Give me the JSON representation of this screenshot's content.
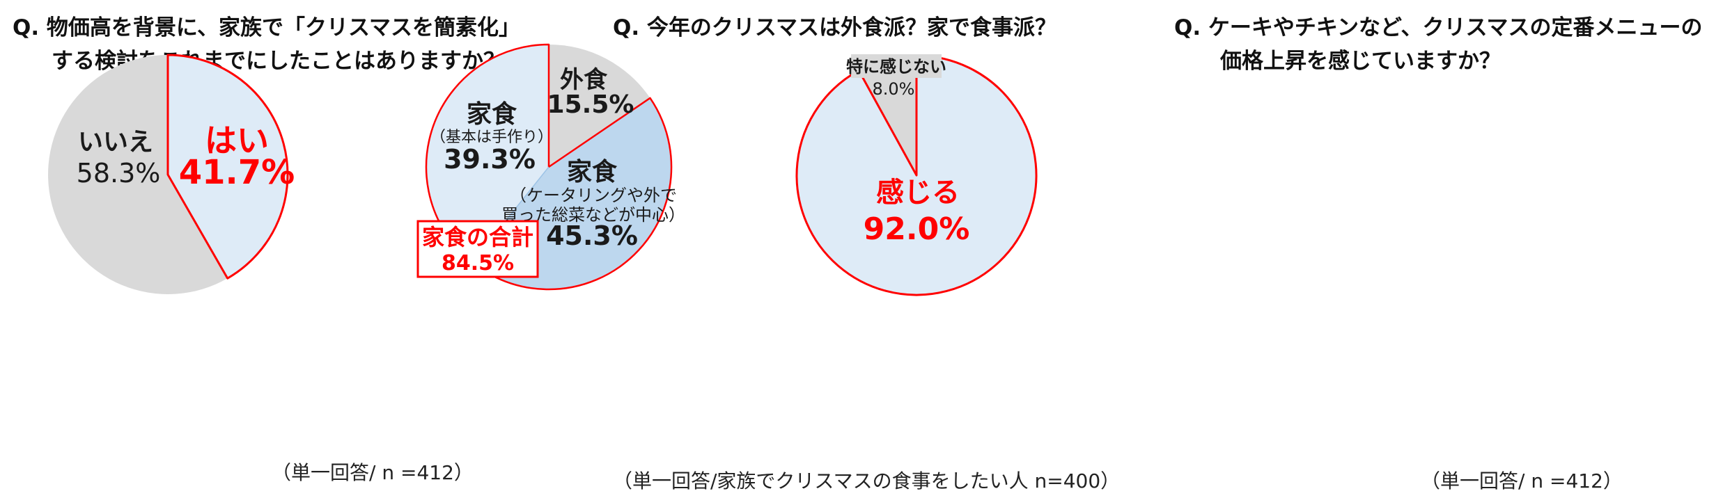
{
  "colors": {
    "gray": "#d9d9d9",
    "light_blue": "#deebf7",
    "mid_blue": "#bdd7ee",
    "highlight_red": "#ff0000",
    "text_dark": "#1a1a1a"
  },
  "chart_data": [
    {
      "type": "pie",
      "title_lines": [
        "Q. 物価高を背景に、家族で「クリスマスを簡素化」",
        "する検討をこれまでにしたことはありますか？"
      ],
      "note": "（単一回答/ n =412）",
      "slices": [
        {
          "label": "はい",
          "detail": "",
          "value": 41.7,
          "value_label": "41.7%",
          "color": "#deebf7",
          "highlight": true
        },
        {
          "label": "いいえ",
          "detail": "",
          "value": 58.3,
          "value_label": "58.3%",
          "color": "#d9d9d9",
          "highlight": false
        }
      ]
    },
    {
      "type": "pie",
      "title_lines": [
        "Q. 今年のクリスマスは外食派？家で食事派？"
      ],
      "note": "（単一回答/家族でクリスマスの食事をしたい人 n=400）",
      "slices": [
        {
          "label": "外食",
          "detail": "",
          "value": 15.5,
          "value_label": "15.5%",
          "color": "#d9d9d9",
          "highlight": false
        },
        {
          "label": "家食",
          "detail": "（ケータリングや外で|買った総菜などが中心）",
          "value": 45.3,
          "value_label": "45.3%",
          "color": "#bdd7ee",
          "highlight": false
        },
        {
          "label": "家食",
          "detail": "（基本は手作り）",
          "value": 39.3,
          "value_label": "39.3%",
          "color": "#deebf7",
          "highlight": false
        }
      ],
      "callout": {
        "label": "家食の合計",
        "value_label": "84.5%"
      }
    },
    {
      "type": "pie",
      "title_lines": [
        "Q. ケーキやチキンなど、クリスマスの定番メニューの",
        "価格上昇を感じていますか？"
      ],
      "note": "（単一回答/ n =412）",
      "slices": [
        {
          "label": "感じる",
          "detail": "",
          "value": 92.0,
          "value_label": "92.0%",
          "color": "#deebf7",
          "highlight": true
        },
        {
          "label": "特に感じない",
          "detail": "",
          "value": 8.0,
          "value_label": "8.0%",
          "color": "#d9d9d9",
          "highlight": false
        }
      ]
    }
  ]
}
